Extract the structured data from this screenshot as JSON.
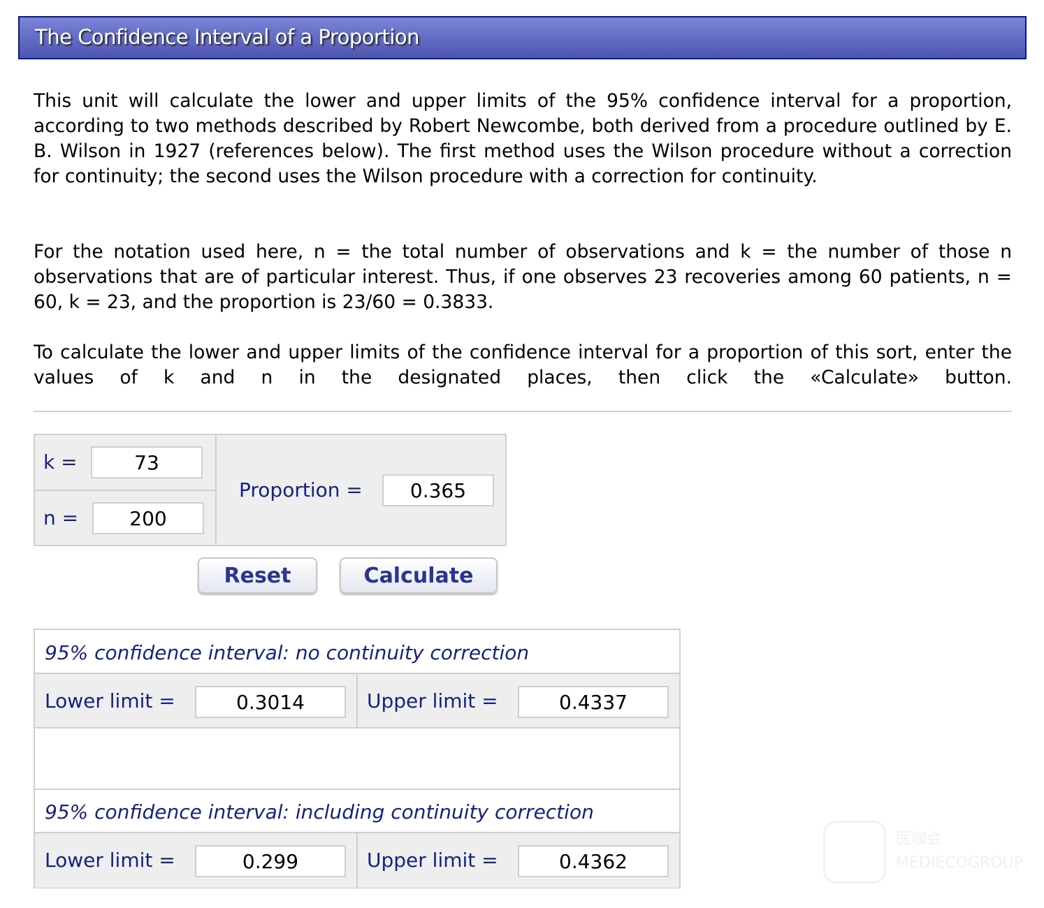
{
  "title": "The Confidence Interval of a Proportion",
  "paragraphs": [
    "This unit will calculate the lower and upper limits of the 95% confidence interval for a proportion, according to two methods described by Robert Newcombe, both derived from a procedure outlined by E. B. Wilson in 1927 (references below). The first method uses the Wilson procedure without a correction for continuity; the second uses the Wilson procedure with a correction for continuity.",
    "For the notation used here, n = the total number of observations and k = the number of those n observations that are of particular interest. Thus, if one observes 23 recoveries among 60 patients, n = 60, k = 23, and the proportion is 23/60 = 0.3833.",
    "To calculate the lower and upper limits of the confidence interval for a proportion of this sort, enter the values of k and n in the designated places, then click the «Calculate» button."
  ],
  "inputs": {
    "k_label": "k =",
    "k_value": "73",
    "n_label": "n =",
    "n_value": "200",
    "proportion_label": "Proportion =",
    "proportion_value": "0.365"
  },
  "buttons": {
    "reset": "Reset",
    "calculate": "Calculate"
  },
  "results": {
    "no_cc": {
      "header": "95% confidence interval: no continuity correction",
      "lower_label": "Lower limit =",
      "lower": "0.3014",
      "upper_label": "Upper limit =",
      "upper": "0.4337"
    },
    "cc": {
      "header": "95% confidence interval: including continuity correction",
      "lower_label": "Lower limit =",
      "lower": "0.299",
      "upper_label": "Upper limit =",
      "upper": "0.4362"
    }
  },
  "watermark": "医咖会 MEDIECOGROUP",
  "colors": {
    "title_bar": "#5e66c0",
    "label": "#14237e",
    "panel": "#eeeeee"
  }
}
